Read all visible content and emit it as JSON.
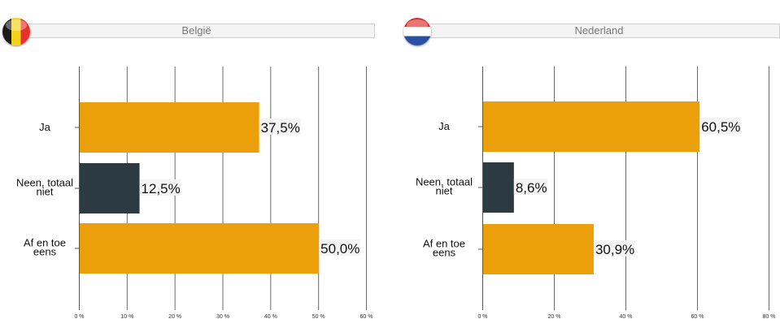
{
  "panels": [
    {
      "country": "België",
      "flag_icon": "belgium-flag-icon",
      "chart_data": {
        "type": "bar",
        "orientation": "horizontal",
        "categories": [
          "Ja",
          "Neen, totaal niet",
          "Af en toe eens"
        ],
        "category_lines": [
          [
            "Ja"
          ],
          [
            "Neen, totaal",
            "niet"
          ],
          [
            "Af en toe",
            "eens"
          ]
        ],
        "values": [
          37.5,
          12.5,
          50.0
        ],
        "value_labels": [
          "37,5%",
          "12,5%",
          "50,0%"
        ],
        "colors": [
          "#eba00b",
          "#2c3a41",
          "#eba00b"
        ],
        "xlim": [
          0,
          60
        ],
        "xticks": [
          0,
          10,
          20,
          30,
          40,
          50,
          60
        ],
        "xtick_labels": [
          "0 %",
          "10 %",
          "20 %",
          "30 %",
          "40 %",
          "50 %",
          "60 %"
        ],
        "grid": true
      }
    },
    {
      "country": "Nederland",
      "flag_icon": "netherlands-flag-icon",
      "chart_data": {
        "type": "bar",
        "orientation": "horizontal",
        "categories": [
          "Ja",
          "Neen, totaal niet",
          "Af en toe eens"
        ],
        "category_lines": [
          [
            "Ja"
          ],
          [
            "Neen, totaal",
            "niet"
          ],
          [
            "Af en toe",
            "eens"
          ]
        ],
        "values": [
          60.5,
          8.6,
          30.9
        ],
        "value_labels": [
          "60,5%",
          "8,6%",
          "30,9%"
        ],
        "colors": [
          "#eba00b",
          "#2c3a41",
          "#eba00b"
        ],
        "xlim": [
          0,
          80
        ],
        "xticks": [
          0,
          20,
          40,
          60,
          80
        ],
        "xtick_labels": [
          "0 %",
          "20 %",
          "40 %",
          "60 %",
          "80 %"
        ],
        "grid": true
      }
    }
  ]
}
